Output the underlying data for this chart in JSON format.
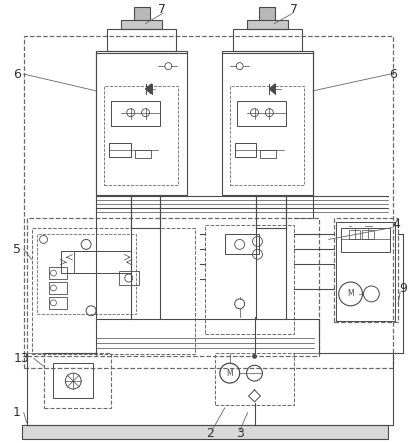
{
  "bg_color": "#ffffff",
  "lc": "#4a4a4a",
  "dc": "#6a6a6a",
  "fig_width": 4.09,
  "fig_height": 4.43,
  "dpi": 100
}
